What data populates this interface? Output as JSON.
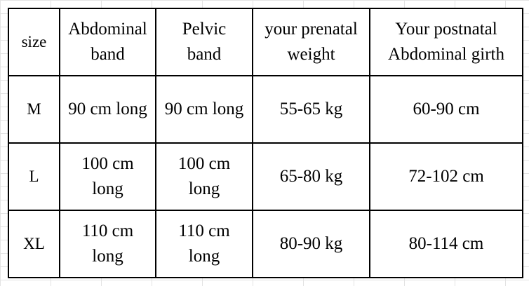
{
  "table": {
    "rows": [
      [
        [
          "size"
        ],
        [
          "Abdominal",
          "band"
        ],
        [
          "Pelvic",
          "band"
        ],
        [
          "your prenatal",
          "weight"
        ],
        [
          "Your postnatal",
          "Abdominal girth"
        ]
      ],
      [
        [
          "M"
        ],
        [
          "90 cm long"
        ],
        [
          "90 cm long"
        ],
        [
          "55-65 kg"
        ],
        [
          "60-90 cm"
        ]
      ],
      [
        [
          "L"
        ],
        [
          "100 cm",
          "long"
        ],
        [
          "100 cm",
          "long"
        ],
        [
          "65-80 kg"
        ],
        [
          "72-102 cm"
        ]
      ],
      [
        [
          "XL"
        ],
        [
          "110 cm",
          "long"
        ],
        [
          "110 cm",
          "long"
        ],
        [
          "80-90 kg"
        ],
        [
          "80-114 cm"
        ]
      ]
    ]
  }
}
